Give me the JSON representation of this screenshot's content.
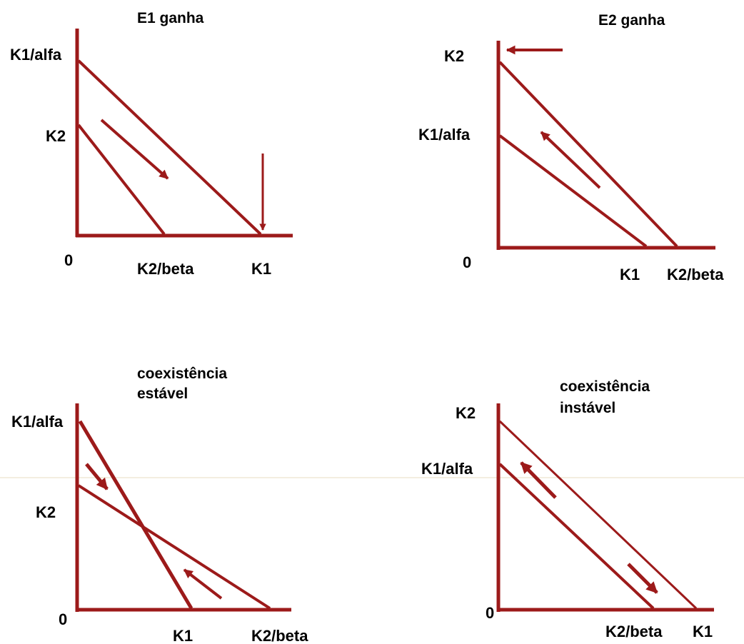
{
  "colors": {
    "line": "#9c1a1a",
    "text": "#000000",
    "divider": "#e9dcc0"
  },
  "panels": {
    "e1": {
      "title": [
        "E1 ganha"
      ],
      "labels": {
        "y_top": "K1/alfa",
        "y_mid": "K2",
        "origin": "0",
        "x_a": "K2/beta",
        "x_b": "K1"
      }
    },
    "e2": {
      "title": [
        "E2 ganha"
      ],
      "labels": {
        "y_top": "K2",
        "y_mid": "K1/alfa",
        "origin": "0",
        "x_a": "K1",
        "x_b": "K2/beta"
      }
    },
    "stable": {
      "title": [
        "coexistência",
        "estável"
      ],
      "labels": {
        "y_top": "K1/alfa",
        "y_mid": "K2",
        "origin": "0",
        "x_a": "K1",
        "x_b": "K2/beta"
      }
    },
    "unstable": {
      "title": [
        "coexistência",
        "instável"
      ],
      "labels": {
        "y_top": "K2",
        "y_mid": "K1/alfa",
        "origin": "0",
        "x_a": "K2/beta",
        "x_b": "K1"
      }
    }
  }
}
